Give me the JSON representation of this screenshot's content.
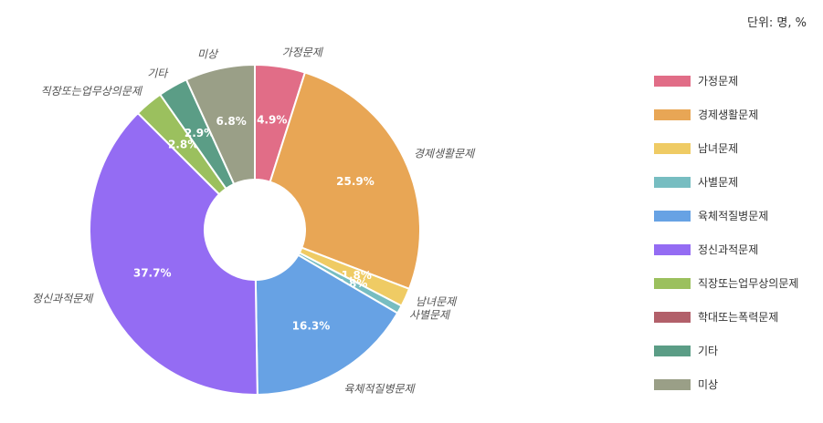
{
  "unit_label": "단위: 명, %",
  "chart_data": {
    "type": "pie",
    "title": "",
    "unit": "단위: 명, %",
    "legend_position": "right",
    "donut": true,
    "categories": [
      "가정문제",
      "경제생활문제",
      "남녀문제",
      "사별문제",
      "육체적질병문제",
      "정신과적문제",
      "직장또는업무상의문제",
      "학대또는폭력문제",
      "기타",
      "미상"
    ],
    "values": [
      4.9,
      25.9,
      1.8,
      0.8,
      16.3,
      37.7,
      2.8,
      0.0,
      2.9,
      6.8
    ],
    "value_labels": [
      "4.9%",
      "25.9%",
      "1.8%",
      "0.8%",
      "16.3%",
      "37.7%",
      "2.8%",
      "",
      "2.9%",
      "6.8%"
    ],
    "slice_labels": [
      "가정문제",
      "경제생활문제",
      "남녀문제",
      "사별문제",
      "육체적질병문제",
      "정신과적문제",
      "직장또는업무상의문제",
      "",
      "기타",
      "미상"
    ],
    "colors": [
      "#e16d87",
      "#e8a655",
      "#efcb64",
      "#77bdc1",
      "#67a2e4",
      "#946cf3",
      "#9bc05e",
      "#b2606a",
      "#5b9d86",
      "#9a9f87"
    ]
  }
}
